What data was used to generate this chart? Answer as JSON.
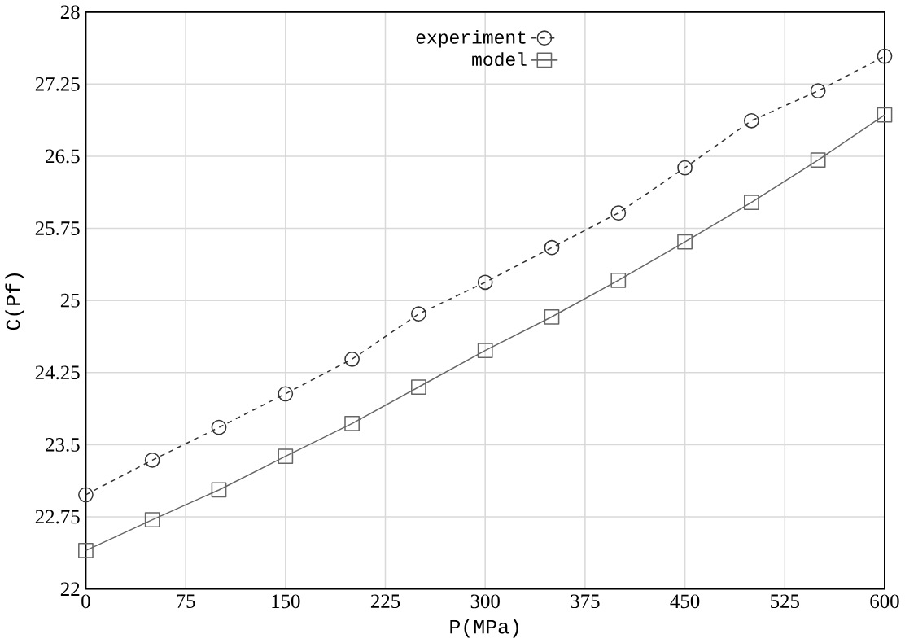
{
  "chart_data": {
    "type": "line",
    "xlabel": "P(MPa)",
    "ylabel": "C(Pf)",
    "xlim": [
      0,
      600
    ],
    "ylim": [
      22,
      28
    ],
    "xticks": [
      0,
      75,
      150,
      225,
      300,
      375,
      450,
      525,
      600
    ],
    "yticks": [
      22,
      {
        "value": 22.75,
        "label": "22.75"
      },
      {
        "value": 23.5,
        "label": "23.5"
      },
      {
        "value": 24.25,
        "label": "24.25"
      },
      25,
      {
        "value": 25.75,
        "label": "25.75"
      },
      {
        "value": 26.5,
        "label": "26.5"
      },
      {
        "value": 27.25,
        "label": "27.25"
      },
      28
    ],
    "x": [
      0,
      50,
      100,
      150,
      200,
      250,
      300,
      350,
      400,
      450,
      500,
      550,
      600
    ],
    "grid": true,
    "legend": "top",
    "series": [
      {
        "name": "experiment",
        "color": "#333333",
        "marker": "circle",
        "line_style": "dashed",
        "values": [
          22.98,
          23.34,
          23.68,
          24.03,
          24.39,
          24.86,
          25.19,
          25.55,
          25.91,
          26.38,
          26.87,
          27.18,
          27.54
        ]
      },
      {
        "name": "model",
        "color": "#666666",
        "marker": "square",
        "line_style": "solid",
        "values": [
          22.4,
          22.72,
          23.03,
          23.38,
          23.72,
          24.1,
          24.48,
          24.83,
          25.21,
          25.61,
          26.02,
          26.46,
          26.93
        ]
      }
    ]
  }
}
